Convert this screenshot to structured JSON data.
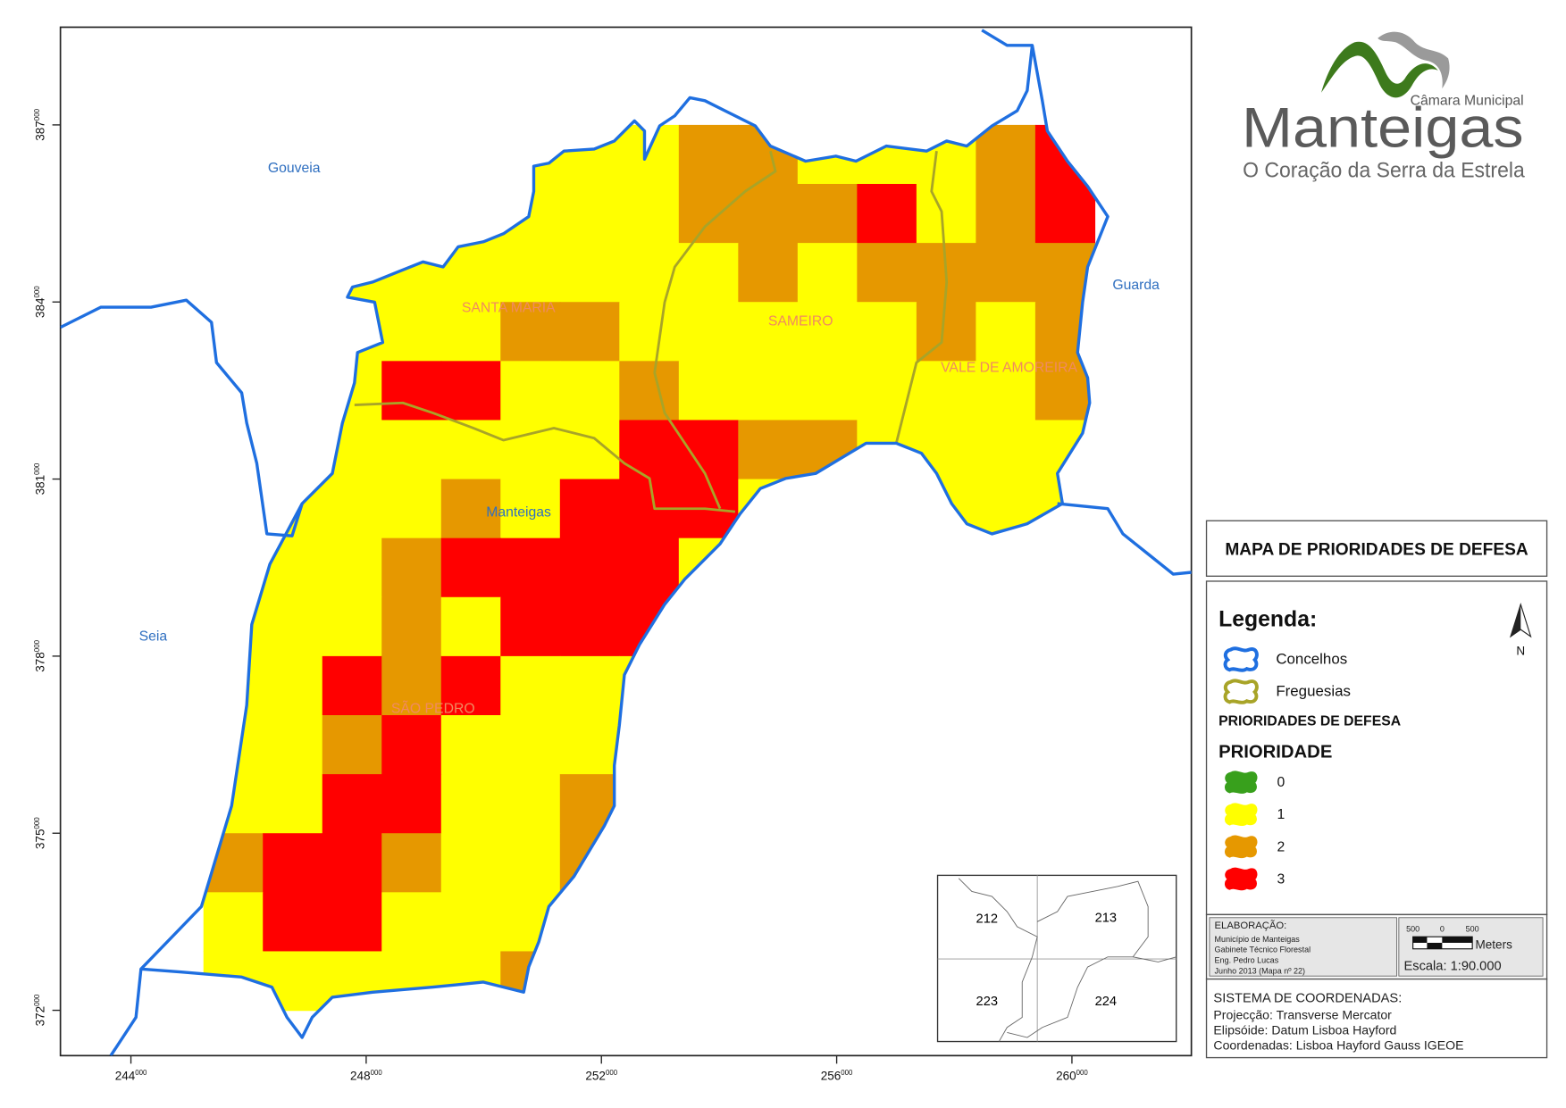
{
  "map": {
    "y_ticks": [
      {
        "label": "387",
        "sup": "000"
      },
      {
        "label": "384",
        "sup": "000"
      },
      {
        "label": "381",
        "sup": "000"
      },
      {
        "label": "378",
        "sup": "000"
      },
      {
        "label": "375",
        "sup": "000"
      },
      {
        "label": "372",
        "sup": "000"
      }
    ],
    "x_ticks": [
      {
        "label": "244",
        "sup": "000"
      },
      {
        "label": "248",
        "sup": "000"
      },
      {
        "label": "252",
        "sup": "000"
      },
      {
        "label": "256",
        "sup": "000"
      },
      {
        "label": "260",
        "sup": "000"
      }
    ],
    "places": [
      "Gouveia",
      "Guarda",
      "Seia",
      "Manteigas"
    ],
    "parishes": [
      "SANTA MARIA",
      "SAMEIRO",
      "VALE DE AMOREIRA",
      "SÃO PEDRO"
    ],
    "priority_grid": [
      [
        1,
        1,
        1,
        1,
        1,
        1,
        1,
        1,
        2,
        2,
        1,
        1,
        1,
        2,
        3
      ],
      [
        1,
        1,
        1,
        1,
        1,
        1,
        1,
        1,
        2,
        2,
        2,
        3,
        1,
        2,
        3
      ],
      [
        1,
        1,
        1,
        1,
        1,
        1,
        1,
        1,
        1,
        2,
        1,
        2,
        2,
        2,
        2
      ],
      [
        1,
        1,
        1,
        1,
        1,
        2,
        2,
        1,
        1,
        1,
        1,
        1,
        2,
        1,
        2
      ],
      [
        1,
        1,
        1,
        3,
        3,
        1,
        1,
        2,
        1,
        1,
        1,
        1,
        1,
        1,
        2
      ],
      [
        1,
        1,
        1,
        1,
        1,
        1,
        1,
        3,
        3,
        2,
        2,
        1,
        1,
        1,
        1
      ],
      [
        1,
        1,
        1,
        1,
        2,
        1,
        3,
        3,
        3,
        1,
        1,
        1,
        1,
        1,
        1
      ],
      [
        1,
        1,
        1,
        2,
        3,
        3,
        3,
        3,
        1,
        1,
        1,
        1,
        1,
        1,
        1
      ],
      [
        1,
        1,
        1,
        2,
        1,
        3,
        3,
        3,
        1,
        1,
        1,
        1,
        1,
        1,
        1
      ],
      [
        1,
        1,
        3,
        2,
        3,
        1,
        1,
        1,
        1,
        1,
        1,
        1,
        1,
        1,
        1
      ],
      [
        1,
        1,
        2,
        3,
        1,
        1,
        1,
        1,
        1,
        1,
        1,
        1,
        1,
        1,
        1
      ],
      [
        1,
        1,
        3,
        3,
        1,
        1,
        2,
        1,
        1,
        1,
        1,
        1,
        1,
        1,
        1
      ],
      [
        2,
        3,
        3,
        2,
        1,
        1,
        2,
        1,
        1,
        1,
        1,
        1,
        1,
        1,
        1
      ],
      [
        1,
        3,
        3,
        1,
        1,
        1,
        1,
        1,
        1,
        1,
        1,
        1,
        1,
        1,
        1
      ],
      [
        1,
        1,
        1,
        1,
        1,
        2,
        1,
        1,
        1,
        1,
        1,
        1,
        1,
        1,
        1
      ]
    ],
    "inset_sheets": [
      "212",
      "213",
      "223",
      "224"
    ]
  },
  "logo": {
    "top": "Câmara Municipal",
    "name": "Manteigas",
    "slogan": "O Coração da Serra da Estrela"
  },
  "title": "MAPA DE PRIORIDADES DE DEFESA",
  "legend": {
    "heading": "Legenda:",
    "boundaries": [
      {
        "label": "Concelhos",
        "color": "#1f6fe0"
      },
      {
        "label": "Freguesias",
        "color": "#a8a428"
      }
    ],
    "layer": "PRIORIDADES DE DEFESA",
    "field": "PRIORIDADE",
    "classes": [
      {
        "label": "0",
        "color": "#38a01c"
      },
      {
        "label": "1",
        "color": "#ffff00"
      },
      {
        "label": "2",
        "color": "#e69800"
      },
      {
        "label": "3",
        "color": "#ff0000"
      }
    ],
    "north": "N"
  },
  "credits": {
    "heading": "ELABORAÇÃO:",
    "lines": [
      "Município de Manteigas",
      "Gabinete Técnico Florestal",
      "Eng. Pedro Lucas",
      "Junho 2013 (Mapa nº 22)"
    ]
  },
  "scale": {
    "ticks": [
      "500",
      "0",
      "500"
    ],
    "unit": "Meters",
    "text": "Escala: 1:90.000"
  },
  "coordinates": {
    "heading": "SISTEMA DE COORDENADAS:",
    "lines": [
      "Projecção: Transverse Mercator",
      "Elipsóide: Datum Lisboa Hayford",
      "Coordenadas: Lisboa Hayford Gauss IGEOE"
    ]
  }
}
